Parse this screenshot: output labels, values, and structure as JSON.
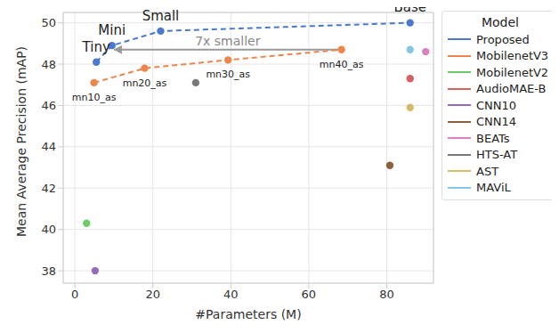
{
  "chart_data": {
    "type": "scatter",
    "xlabel": "#Parameters (M)",
    "ylabel": "Mean Average Precision (mAP)",
    "xlim": [
      -3,
      92
    ],
    "ylim": [
      37.4,
      50.5
    ],
    "xticks": [
      0,
      20,
      40,
      60,
      80
    ],
    "yticks": [
      38,
      40,
      42,
      44,
      46,
      48,
      50
    ],
    "grid": true,
    "legend": "outside right",
    "legend_title": "Model",
    "annotations": [
      {
        "text": "7x smaller",
        "x_from": 68.4,
        "x_to": 10,
        "y": 48.7
      }
    ],
    "series": [
      {
        "name": "Proposed",
        "color": "#4878d0",
        "line_style": "dashed",
        "marker": "circle",
        "x": [
          5.5,
          9.5,
          22,
          86
        ],
        "values": [
          48.1,
          48.9,
          49.6,
          50.0
        ],
        "labels": [
          "Tiny",
          "Mini",
          "Small",
          "Base"
        ]
      },
      {
        "name": "MobilenetV3",
        "color": "#ee854a",
        "line_style": "dashed",
        "marker": "circle",
        "x": [
          4.9,
          17.9,
          39.3,
          68.4
        ],
        "values": [
          47.1,
          47.8,
          48.2,
          48.7
        ],
        "labels": [
          "mn10_as",
          "mn20_as",
          "mn30_as",
          "mn40_as"
        ]
      },
      {
        "name": "MobilenetV2",
        "color": "#6acc64",
        "marker": "circle",
        "x": [
          3
        ],
        "values": [
          40.3
        ]
      },
      {
        "name": "AudioMAE-B",
        "color": "#d65f5f",
        "marker": "circle",
        "x": [
          86
        ],
        "values": [
          47.3
        ]
      },
      {
        "name": "CNN10",
        "color": "#956cb4",
        "marker": "circle",
        "x": [
          5.2
        ],
        "values": [
          38.0
        ]
      },
      {
        "name": "CNN14",
        "color": "#8c613c",
        "marker": "circle",
        "x": [
          80.8
        ],
        "values": [
          43.1
        ]
      },
      {
        "name": "BEATs",
        "color": "#dc7ec0",
        "marker": "circle",
        "x": [
          90
        ],
        "values": [
          48.6
        ]
      },
      {
        "name": "HTS-AT",
        "color": "#797979",
        "marker": "circle",
        "x": [
          31
        ],
        "values": [
          47.1
        ]
      },
      {
        "name": "AST",
        "color": "#d5bb67",
        "marker": "circle",
        "x": [
          86
        ],
        "values": [
          45.9
        ]
      },
      {
        "name": "MAViL",
        "color": "#82c6e2",
        "marker": "circle",
        "x": [
          86
        ],
        "values": [
          48.7
        ]
      }
    ]
  }
}
